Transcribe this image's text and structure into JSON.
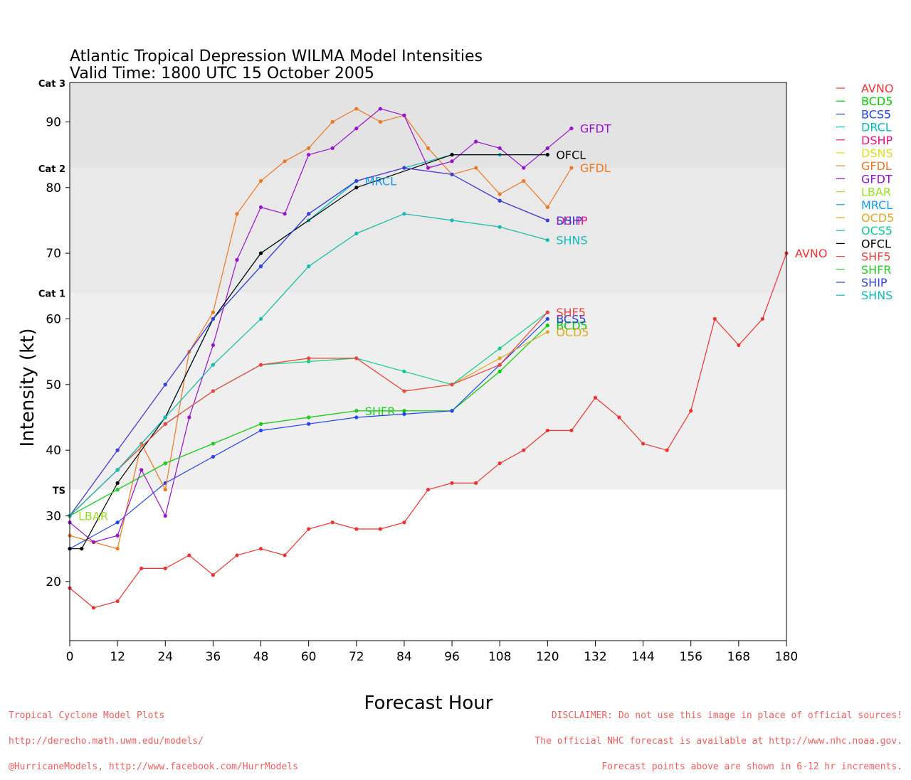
{
  "footer": {
    "left": [
      "Tropical Cyclone Model Plots",
      "http://derecho.math.uwm.edu/models/",
      "@HurricaneModels, http://www.facebook.com/HurrModels"
    ],
    "right": [
      "DISCLAIMER: Do not use this image in place of official sources!",
      "The official NHC forecast is available at http://www.nhc.noaa.gov.",
      "Forecast points above are shown in 6-12 hr increments."
    ]
  },
  "chart_data": {
    "type": "line",
    "title": "Atlantic Tropical Depression WILMA Model Intensities",
    "subtitle": "Valid Time: 1800 UTC 15 October 2005",
    "xlabel": "Forecast Hour",
    "ylabel": "Intensity (kt)",
    "xlim": [
      0,
      180
    ],
    "ylim": [
      11,
      96
    ],
    "xticks": [
      0,
      12,
      24,
      36,
      48,
      60,
      72,
      84,
      96,
      108,
      120,
      132,
      144,
      156,
      168,
      180
    ],
    "yticks": [
      20,
      30,
      40,
      50,
      60,
      70,
      80,
      90
    ],
    "grid": false,
    "legend_position": "right",
    "bands": [
      {
        "label": "TS",
        "from": 34,
        "to": 64,
        "color": "#efefef"
      },
      {
        "label": "Cat 1",
        "from": 64,
        "to": 83,
        "color": "#e9e9e9"
      },
      {
        "label": "Cat 2",
        "from": 83,
        "to": 96,
        "color": "#e3e3e3"
      },
      {
        "label": "Cat 3",
        "from": 96,
        "to": 96.5,
        "color": "#dddddd"
      }
    ],
    "series": [
      {
        "name": "AVNO",
        "color": "#ee3333",
        "label_at_end": true,
        "x": [
          0,
          6,
          12,
          18,
          24,
          30,
          36,
          42,
          48,
          54,
          60,
          66,
          72,
          78,
          84,
          90,
          96,
          102,
          108,
          114,
          120,
          126,
          132,
          138,
          144,
          150,
          156,
          162,
          168,
          174,
          180
        ],
        "y": [
          19,
          16,
          17,
          22,
          22,
          24,
          21,
          24,
          25,
          24,
          28,
          29,
          28,
          28,
          29,
          34,
          35,
          35,
          38,
          40,
          43,
          43,
          48,
          45,
          41,
          40,
          46,
          60,
          56,
          60,
          70
        ]
      },
      {
        "name": "BCD5",
        "color": "#00cc00",
        "label_at_end": true,
        "x": [
          0,
          12,
          24,
          36,
          48,
          60,
          72,
          84,
          96,
          108,
          120
        ],
        "y": [
          30,
          34,
          38,
          41,
          44,
          45,
          46,
          46,
          46,
          52,
          59
        ]
      },
      {
        "name": "BCS5",
        "color": "#2244ee",
        "label_at_end": true,
        "x": [
          0,
          12,
          24,
          36,
          48,
          60,
          72,
          84,
          96,
          108,
          120
        ],
        "y": [
          25,
          29,
          35,
          39,
          43,
          44,
          45,
          45.5,
          46,
          53,
          60
        ]
      },
      {
        "name": "DRCL",
        "color": "#00bbbb",
        "label_at_end": false,
        "x": [
          0,
          12,
          24,
          36,
          48,
          60,
          72,
          84,
          96,
          108,
          120
        ],
        "y": [
          30,
          37,
          45,
          60,
          70,
          75,
          81,
          83,
          85,
          85,
          85
        ]
      },
      {
        "name": "DSHP",
        "color": "#ee1188",
        "label_at_end": true,
        "x": [
          0,
          12,
          24,
          36,
          48,
          60,
          72,
          84,
          96,
          108,
          120
        ],
        "y": [
          30,
          40,
          50,
          60,
          68,
          76,
          81,
          83,
          82,
          78,
          75
        ]
      },
      {
        "name": "DSNS",
        "color": "#dddd22",
        "label_at_end": false,
        "x": [
          0,
          12,
          24,
          36,
          48,
          60,
          72,
          84,
          96,
          108,
          120
        ],
        "y": [
          30,
          37,
          45,
          53,
          60,
          68,
          73,
          76,
          75,
          74,
          72
        ]
      },
      {
        "name": "GFDL",
        "color": "#ee7722",
        "label_at_end": true,
        "x": [
          0,
          6,
          12,
          18,
          24,
          30,
          36,
          42,
          48,
          54,
          60,
          66,
          72,
          78,
          84,
          90,
          96,
          102,
          108,
          114,
          120,
          126
        ],
        "y": [
          27,
          26,
          25,
          41,
          34,
          55,
          61,
          76,
          81,
          84,
          86,
          90,
          92,
          90,
          91,
          86,
          82,
          83,
          79,
          81,
          77,
          83
        ]
      },
      {
        "name": "GFDT",
        "color": "#9911cc",
        "label_at_end": true,
        "x": [
          0,
          6,
          12,
          18,
          24,
          30,
          36,
          42,
          48,
          54,
          60,
          66,
          72,
          78,
          84,
          90,
          96,
          102,
          108,
          114,
          120,
          126
        ],
        "y": [
          29,
          26,
          27,
          37,
          30,
          45,
          56,
          69,
          77,
          76,
          85,
          86,
          89,
          92,
          91,
          83,
          84,
          87,
          86,
          83,
          86,
          89
        ]
      },
      {
        "name": "LBAR",
        "color": "#99dd22",
        "label_at_end": true,
        "x": [
          0
        ],
        "y": [
          30
        ]
      },
      {
        "name": "MRCL",
        "color": "#1199ee",
        "label_at_end": true,
        "x": [
          0,
          12,
          24,
          36,
          48,
          60,
          72
        ],
        "y": [
          30,
          37,
          45,
          60,
          68,
          76,
          81
        ]
      },
      {
        "name": "OCD5",
        "color": "#ddaa22",
        "label_at_end": true,
        "x": [
          0,
          12,
          24,
          36,
          48,
          60,
          72,
          84,
          96,
          108,
          120
        ],
        "y": [
          30,
          37,
          44,
          49,
          53,
          54,
          54,
          49,
          50,
          54,
          58
        ]
      },
      {
        "name": "OCS5",
        "color": "#11cc88",
        "label_at_end": false,
        "x": [
          0,
          12,
          24,
          36,
          48,
          60,
          72,
          84,
          96,
          108,
          120
        ],
        "y": [
          30,
          37,
          44,
          49,
          53,
          53.5,
          54,
          52,
          50,
          55.5,
          61
        ]
      },
      {
        "name": "OFCL",
        "color": "#000000",
        "label_at_end": true,
        "x": [
          0,
          3,
          12,
          24,
          36,
          48,
          72,
          96,
          120
        ],
        "y": [
          25,
          25,
          35,
          45,
          60,
          70,
          80,
          85,
          85
        ]
      },
      {
        "name": "SHF5",
        "color": "#ee4444",
        "label_at_end": true,
        "x": [
          0,
          12,
          24,
          36,
          48,
          60,
          72,
          84,
          96,
          108,
          120
        ],
        "y": [
          30,
          37,
          44,
          49,
          53,
          54,
          54,
          49,
          50,
          53,
          61
        ]
      },
      {
        "name": "SHFR",
        "color": "#22cc22",
        "label_at_end": true,
        "x": [
          0,
          12,
          24,
          36,
          48,
          60,
          72
        ],
        "y": [
          30,
          34,
          38,
          41,
          44,
          45,
          46
        ]
      },
      {
        "name": "SHIP",
        "color": "#3344dd",
        "label_at_end": true,
        "x": [
          0,
          12,
          24,
          36,
          48,
          60,
          72,
          84,
          96,
          108,
          120
        ],
        "y": [
          30,
          40,
          50,
          60,
          68,
          76,
          81,
          83,
          82,
          78,
          75
        ]
      },
      {
        "name": "SHNS",
        "color": "#11bbbb",
        "label_at_end": true,
        "x": [
          0,
          12,
          24,
          36,
          48,
          60,
          72,
          84,
          96,
          108,
          120
        ],
        "y": [
          30,
          37,
          45,
          53,
          60,
          68,
          73,
          76,
          75,
          74,
          72
        ]
      }
    ]
  }
}
